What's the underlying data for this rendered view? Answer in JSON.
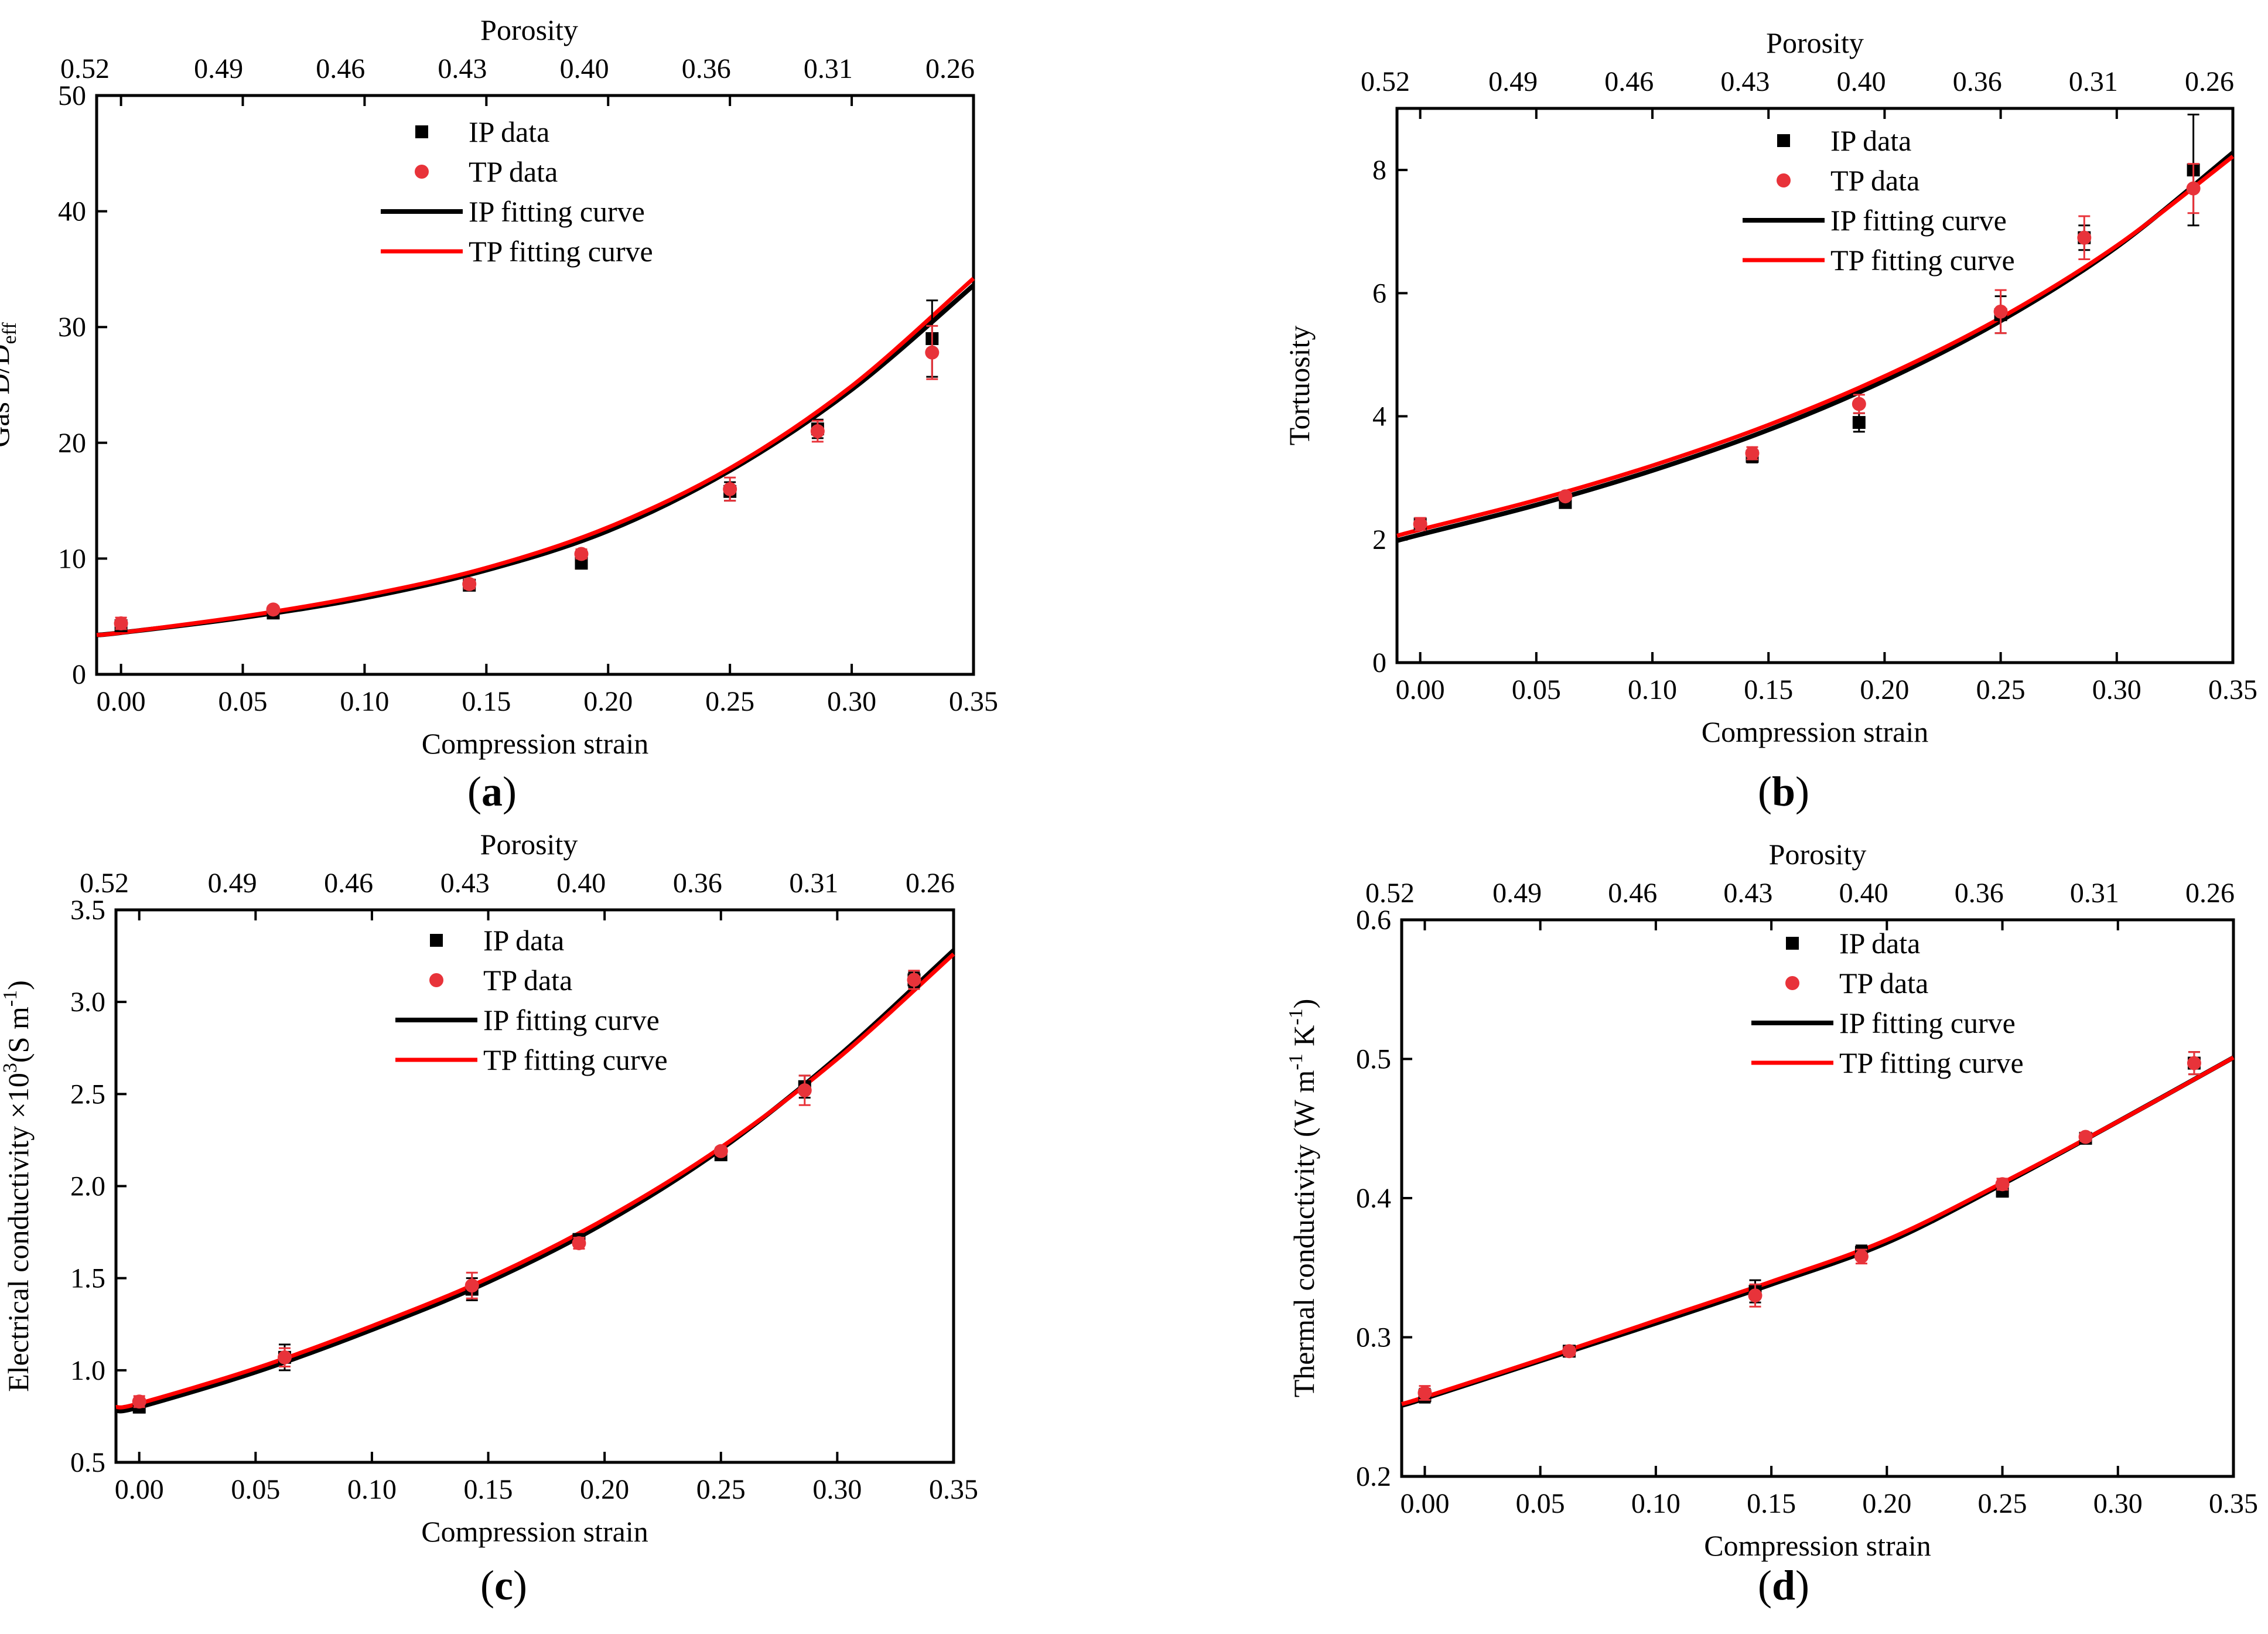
{
  "colors": {
    "ip": "#000000",
    "tp": "#e8333a",
    "tp_curve": "#ff0000"
  },
  "legend": {
    "ip_data": "IP data",
    "tp_data": "TP data",
    "ip_curve": "IP fitting curve",
    "tp_curve": "TP fitting curve"
  },
  "chart_data": [
    {
      "type": "scatter",
      "panel_label": "a",
      "xlabel": "Compression strain",
      "top_xlabel": "Porosity",
      "ylabel": "Gas D/D",
      "ylabel_sub": "eff",
      "ylabel_sup": "",
      "ylabel_tail": "",
      "xlim": [
        -0.01,
        0.35
      ],
      "ylim": [
        0,
        50
      ],
      "xticks": [
        "0.00",
        "0.05",
        "0.10",
        "0.15",
        "0.20",
        "0.25",
        "0.30",
        "0.35"
      ],
      "yticks": [
        "0",
        "10",
        "20",
        "30",
        "40",
        "50"
      ],
      "porosity_ticks": [
        "0.52",
        "0.49",
        "0.46",
        "0.43",
        "0.40",
        "0.36",
        "0.31",
        "0.26"
      ],
      "legend_placement": "top-center",
      "series": [
        {
          "name": "IP data",
          "kind": "points",
          "x": [
            0.0,
            0.0625,
            0.143,
            0.189,
            0.25,
            0.286,
            0.333
          ],
          "y": [
            4.2,
            5.3,
            7.7,
            9.6,
            15.8,
            21.2,
            29.0
          ],
          "err": [
            0.4,
            0.3,
            0.3,
            0.4,
            0.8,
            0.8,
            3.3
          ]
        },
        {
          "name": "TP data",
          "kind": "points",
          "x": [
            0.0,
            0.0625,
            0.143,
            0.189,
            0.25,
            0.286,
            0.333
          ],
          "y": [
            4.4,
            5.6,
            7.8,
            10.4,
            16.0,
            21.0,
            27.8
          ],
          "err": [
            0.5,
            0.3,
            0.4,
            0.4,
            1.0,
            0.9,
            2.3
          ]
        },
        {
          "name": "IP fitting curve",
          "kind": "curve",
          "x": [
            -0.01,
            0.0,
            0.05,
            0.1,
            0.15,
            0.2,
            0.25,
            0.3,
            0.35
          ],
          "y": [
            3.4,
            3.6,
            4.9,
            6.6,
            9.0,
            12.4,
            17.6,
            24.6,
            33.6
          ]
        },
        {
          "name": "TP fitting curve",
          "kind": "curve",
          "x": [
            -0.01,
            0.0,
            0.05,
            0.1,
            0.15,
            0.2,
            0.25,
            0.3,
            0.35
          ],
          "y": [
            3.4,
            3.6,
            5.0,
            6.8,
            9.2,
            12.7,
            17.8,
            24.9,
            34.2
          ]
        }
      ]
    },
    {
      "type": "scatter",
      "panel_label": "b",
      "xlabel": "Compression strain",
      "top_xlabel": "Porosity",
      "ylabel": "Tortuosity",
      "ylabel_sub": "",
      "ylabel_sup": "",
      "ylabel_tail": "",
      "xlim": [
        -0.01,
        0.35
      ],
      "ylim": [
        0,
        9
      ],
      "xticks": [
        "0.00",
        "0.05",
        "0.10",
        "0.15",
        "0.20",
        "0.25",
        "0.30",
        "0.35"
      ],
      "yticks": [
        "0",
        "2",
        "4",
        "6",
        "8"
      ],
      "porosity_ticks": [
        "0.52",
        "0.49",
        "0.46",
        "0.43",
        "0.40",
        "0.36",
        "0.31",
        "0.26"
      ],
      "legend_placement": "top-center",
      "series": [
        {
          "name": "IP data",
          "kind": "points",
          "x": [
            0.0,
            0.0625,
            0.143,
            0.189,
            0.25,
            0.286,
            0.333
          ],
          "y": [
            2.25,
            2.6,
            3.35,
            3.9,
            5.65,
            6.9,
            8.0
          ],
          "err": [
            0.1,
            0.05,
            0.1,
            0.15,
            0.3,
            0.2,
            0.9
          ]
        },
        {
          "name": "TP data",
          "kind": "points",
          "x": [
            0.0,
            0.0625,
            0.143,
            0.189,
            0.25,
            0.286,
            0.333
          ],
          "y": [
            2.25,
            2.7,
            3.4,
            4.2,
            5.7,
            6.9,
            7.7
          ],
          "err": [
            0.1,
            0.05,
            0.1,
            0.15,
            0.35,
            0.35,
            0.4
          ]
        },
        {
          "name": "IP fitting curve",
          "kind": "curve",
          "x": [
            -0.01,
            0.0,
            0.05,
            0.1,
            0.15,
            0.2,
            0.25,
            0.3,
            0.35
          ],
          "y": [
            1.98,
            2.08,
            2.56,
            3.12,
            3.78,
            4.58,
            5.55,
            6.75,
            8.28
          ]
        },
        {
          "name": "TP fitting curve",
          "kind": "curve",
          "x": [
            -0.01,
            0.0,
            0.05,
            0.1,
            0.15,
            0.2,
            0.25,
            0.3,
            0.35
          ],
          "y": [
            2.06,
            2.16,
            2.64,
            3.2,
            3.86,
            4.65,
            5.6,
            6.77,
            8.22
          ]
        }
      ]
    },
    {
      "type": "scatter",
      "panel_label": "c",
      "xlabel": "Compression strain",
      "top_xlabel": "Porosity",
      "ylabel": "Electrical conductivity ×10",
      "ylabel_sub": "",
      "ylabel_sup": "3",
      "ylabel_tail": "(S m",
      "ylabel_sup2": "-1",
      "ylabel_end": ")",
      "xlim": [
        -0.01,
        0.35
      ],
      "ylim": [
        0.5,
        3.5
      ],
      "xticks": [
        "0.00",
        "0.05",
        "0.10",
        "0.15",
        "0.20",
        "0.25",
        "0.30",
        "0.35"
      ],
      "yticks": [
        "0.5",
        "1.0",
        "1.5",
        "2.0",
        "2.5",
        "3.0",
        "3.5"
      ],
      "porosity_ticks": [
        "0.52",
        "0.49",
        "0.46",
        "0.43",
        "0.40",
        "0.36",
        "0.31",
        "0.26"
      ],
      "legend_placement": "top-center",
      "series": [
        {
          "name": "IP data",
          "kind": "points",
          "x": [
            0.0,
            0.0625,
            0.143,
            0.189,
            0.25,
            0.286,
            0.333
          ],
          "y": [
            0.8,
            1.07,
            1.44,
            1.71,
            2.17,
            2.54,
            3.12
          ],
          "err": [
            0.03,
            0.07,
            0.06,
            0.03,
            0.03,
            0.06,
            0.04
          ]
        },
        {
          "name": "TP data",
          "kind": "points",
          "x": [
            0.0,
            0.0625,
            0.143,
            0.189,
            0.25,
            0.286,
            0.333
          ],
          "y": [
            0.83,
            1.07,
            1.46,
            1.69,
            2.19,
            2.52,
            3.12
          ],
          "err": [
            0.03,
            0.05,
            0.07,
            0.03,
            0.02,
            0.08,
            0.05
          ]
        },
        {
          "name": "IP fitting curve",
          "kind": "curve",
          "x": [
            -0.01,
            0.0,
            0.05,
            0.1,
            0.15,
            0.2,
            0.25,
            0.3,
            0.35
          ],
          "y": [
            0.78,
            0.8,
            0.99,
            1.22,
            1.48,
            1.8,
            2.2,
            2.7,
            3.28
          ]
        },
        {
          "name": "TP fitting curve",
          "kind": "curve",
          "x": [
            -0.01,
            0.0,
            0.05,
            0.1,
            0.15,
            0.2,
            0.25,
            0.3,
            0.35
          ],
          "y": [
            0.8,
            0.82,
            1.01,
            1.24,
            1.5,
            1.82,
            2.21,
            2.69,
            3.26
          ]
        }
      ]
    },
    {
      "type": "scatter",
      "panel_label": "d",
      "xlabel": "Compression strain",
      "top_xlabel": "Porosity",
      "ylabel": "Thermal conductivity (W m",
      "ylabel_sub": "",
      "ylabel_sup": "-1",
      "ylabel_tail": " K",
      "ylabel_sup2": "-1",
      "ylabel_end": ")",
      "xlim": [
        -0.01,
        0.35
      ],
      "ylim": [
        0.2,
        0.6
      ],
      "xticks": [
        "0.00",
        "0.05",
        "0.10",
        "0.15",
        "0.20",
        "0.25",
        "0.30",
        "0.35"
      ],
      "yticks": [
        "0.2",
        "0.3",
        "0.4",
        "0.5",
        "0.6"
      ],
      "porosity_ticks": [
        "0.52",
        "0.49",
        "0.46",
        "0.43",
        "0.40",
        "0.36",
        "0.31",
        "0.26"
      ],
      "legend_placement": "top-center",
      "series": [
        {
          "name": "IP data",
          "kind": "points",
          "x": [
            0.0,
            0.0625,
            0.143,
            0.189,
            0.25,
            0.286,
            0.333
          ],
          "y": [
            0.258,
            0.29,
            0.333,
            0.361,
            0.405,
            0.443,
            0.497
          ],
          "err": [
            0.005,
            0.003,
            0.008,
            0.005,
            0.004,
            0.003,
            0.008
          ]
        },
        {
          "name": "TP data",
          "kind": "points",
          "x": [
            0.0,
            0.0625,
            0.143,
            0.189,
            0.25,
            0.286,
            0.333
          ],
          "y": [
            0.26,
            0.29,
            0.33,
            0.358,
            0.41,
            0.444,
            0.497
          ],
          "err": [
            0.005,
            0.003,
            0.008,
            0.005,
            0.004,
            0.003,
            0.008
          ]
        },
        {
          "name": "IP fitting curve",
          "kind": "curve",
          "x": [
            -0.01,
            0.0,
            0.05,
            0.1,
            0.15,
            0.2,
            0.25,
            0.3,
            0.35
          ],
          "y": [
            0.251,
            0.256,
            0.283,
            0.31,
            0.338,
            0.368,
            0.41,
            0.455,
            0.501
          ]
        },
        {
          "name": "TP fitting curve",
          "kind": "curve",
          "x": [
            -0.01,
            0.0,
            0.05,
            0.1,
            0.15,
            0.2,
            0.25,
            0.3,
            0.35
          ],
          "y": [
            0.252,
            0.257,
            0.284,
            0.312,
            0.34,
            0.37,
            0.411,
            0.455,
            0.501
          ]
        }
      ]
    }
  ]
}
